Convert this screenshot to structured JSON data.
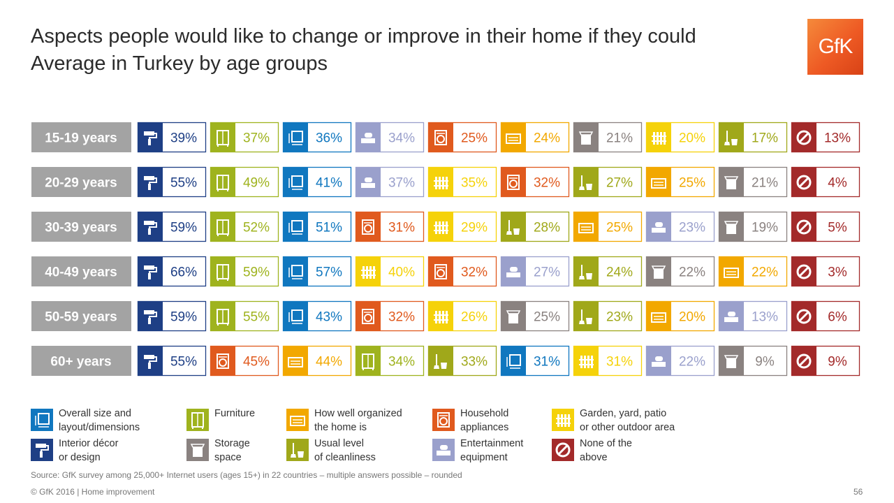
{
  "title_line1": "Aspects people would like to change or improve in their home if they could",
  "title_line2": "Average in Turkey by age groups",
  "logo_text": "GfK",
  "categories_meta": {
    "size": {
      "label1": "Overall size and",
      "label2": "layout/dimensions",
      "color": "#1077bf",
      "icon": "size-layout-icon"
    },
    "furniture": {
      "label1": "Furniture",
      "label2": "",
      "color": "#9fb31e",
      "icon": "cupboard-icon"
    },
    "organized": {
      "label1": "How well organized",
      "label2": "the home is",
      "color": "#f2a800",
      "icon": "drawer-icon"
    },
    "appliances": {
      "label1": "Household",
      "label2": "appliances",
      "color": "#e05a1e",
      "icon": "washing-machine-icon"
    },
    "garden": {
      "label1": "Garden, yard, patio",
      "label2": "or other outdoor area",
      "color": "#f5d20a",
      "icon": "fence-icon"
    },
    "decor": {
      "label1": "Interior décor",
      "label2": "or design",
      "color": "#1e3f85",
      "icon": "paint-roller-icon"
    },
    "storage": {
      "label1": "Storage",
      "label2": "space",
      "color": "#8a8280",
      "icon": "storage-box-icon"
    },
    "cleanliness": {
      "label1": "Usual level",
      "label2": "of cleanliness",
      "color": "#a0a81a",
      "icon": "broom-bucket-icon"
    },
    "entertainment": {
      "label1": "Entertainment",
      "label2": "equipment",
      "color": "#9aa0cc",
      "icon": "game-controller-icon"
    },
    "none": {
      "label1": "None of the",
      "label2": "above",
      "color": "#a32a2a",
      "icon": "no-entry-icon"
    }
  },
  "legend_order": [
    [
      "size",
      "furniture",
      "organized",
      "appliances",
      "garden"
    ],
    [
      "decor",
      "storage",
      "cleanliness",
      "entertainment",
      "none"
    ]
  ],
  "chart_data": {
    "type": "table",
    "rows": [
      {
        "label": "15-19 years",
        "cells": [
          [
            "decor",
            39
          ],
          [
            "furniture",
            37
          ],
          [
            "size",
            36
          ],
          [
            "entertainment",
            34
          ],
          [
            "appliances",
            25
          ],
          [
            "organized",
            24
          ],
          [
            "storage",
            21
          ],
          [
            "garden",
            20
          ],
          [
            "cleanliness",
            17
          ],
          [
            "none",
            13
          ]
        ]
      },
      {
        "label": "20-29 years",
        "cells": [
          [
            "decor",
            55
          ],
          [
            "furniture",
            49
          ],
          [
            "size",
            41
          ],
          [
            "entertainment",
            37
          ],
          [
            "garden",
            35
          ],
          [
            "appliances",
            32
          ],
          [
            "cleanliness",
            27
          ],
          [
            "organized",
            25
          ],
          [
            "storage",
            21
          ],
          [
            "none",
            4
          ]
        ]
      },
      {
        "label": "30-39 years",
        "cells": [
          [
            "decor",
            59
          ],
          [
            "furniture",
            52
          ],
          [
            "size",
            51
          ],
          [
            "appliances",
            31
          ],
          [
            "garden",
            29
          ],
          [
            "cleanliness",
            28
          ],
          [
            "organized",
            25
          ],
          [
            "entertainment",
            23
          ],
          [
            "storage",
            19
          ],
          [
            "none",
            5
          ]
        ]
      },
      {
        "label": "40-49 years",
        "cells": [
          [
            "decor",
            66
          ],
          [
            "furniture",
            59
          ],
          [
            "size",
            57
          ],
          [
            "garden",
            40
          ],
          [
            "appliances",
            32
          ],
          [
            "entertainment",
            27
          ],
          [
            "cleanliness",
            24
          ],
          [
            "storage",
            22
          ],
          [
            "organized",
            22
          ],
          [
            "none",
            3
          ]
        ]
      },
      {
        "label": "50-59 years",
        "cells": [
          [
            "decor",
            59
          ],
          [
            "furniture",
            55
          ],
          [
            "size",
            43
          ],
          [
            "appliances",
            32
          ],
          [
            "garden",
            26
          ],
          [
            "storage",
            25
          ],
          [
            "cleanliness",
            23
          ],
          [
            "organized",
            20
          ],
          [
            "entertainment",
            13
          ],
          [
            "none",
            6
          ]
        ]
      },
      {
        "label": "60+ years",
        "cells": [
          [
            "decor",
            55
          ],
          [
            "appliances",
            45
          ],
          [
            "organized",
            44
          ],
          [
            "furniture",
            34
          ],
          [
            "cleanliness",
            33
          ],
          [
            "size",
            31
          ],
          [
            "garden",
            31
          ],
          [
            "entertainment",
            22
          ],
          [
            "storage",
            9
          ],
          [
            "none",
            9
          ]
        ]
      }
    ]
  },
  "source_text": "Source: GfK survey among 25,000+ Internet users (ages 15+) in 22 countries – multiple answers possible – rounded",
  "copyright_text": "© GfK 2016 | Home improvement",
  "page_number": "56"
}
